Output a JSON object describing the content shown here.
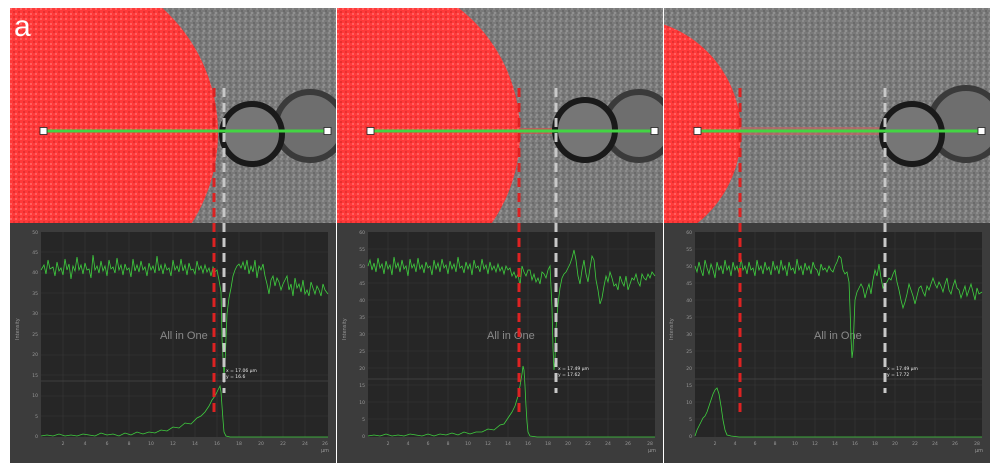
{
  "figure": {
    "panel_label": "a"
  },
  "colors": {
    "droplet_red": "#ff3a3a",
    "profile_line": "#43d443",
    "signal_green": "#3fcf3f",
    "plot_bg": "#262626",
    "frame_bg": "#3c3c3c",
    "grid": "#3a3a3a",
    "marker_red": "#dd2222",
    "marker_grey": "#c8c8c8"
  },
  "panels": [
    {
      "watermark": "All in One",
      "y_axis_label": "Intensity",
      "x_unit": "µm",
      "cursor_x": "x = 17.06 µm",
      "cursor_y": "y = 16.6",
      "y_ticks": [
        "0",
        "5",
        "10",
        "15",
        "20",
        "25",
        "30",
        "35",
        "40",
        "45",
        "50"
      ],
      "x_ticks": [
        "2",
        "4",
        "6",
        "8",
        "10",
        "12",
        "14",
        "16",
        "18",
        "20",
        "22",
        "24",
        "26"
      ],
      "image_icons": [
        "droplet",
        "cell-pair"
      ]
    },
    {
      "watermark": "All in One",
      "y_axis_label": "Intensity",
      "x_unit": "µm",
      "cursor_x": "x = 17.49 µm",
      "cursor_y": "y = 17.62",
      "y_ticks": [
        "0",
        "5",
        "10",
        "15",
        "20",
        "25",
        "30",
        "35",
        "40",
        "45",
        "50",
        "55",
        "60"
      ],
      "x_ticks": [
        "2",
        "4",
        "6",
        "8",
        "10",
        "12",
        "14",
        "16",
        "18",
        "20",
        "22",
        "24",
        "26",
        "28"
      ],
      "image_icons": [
        "droplet",
        "cell-pair"
      ]
    },
    {
      "watermark": "All in One",
      "y_axis_label": "Intensity",
      "x_unit": "µm",
      "cursor_x": "x = 17.49 µm",
      "cursor_y": "y = 17.72",
      "y_ticks": [
        "0",
        "5",
        "10",
        "15",
        "20",
        "25",
        "30",
        "35",
        "40",
        "45",
        "50",
        "55",
        "60"
      ],
      "x_ticks": [
        "2",
        "4",
        "6",
        "8",
        "10",
        "12",
        "14",
        "16",
        "18",
        "20",
        "22",
        "24",
        "26",
        "28"
      ],
      "image_icons": [
        "droplet",
        "cell-pair"
      ]
    }
  ]
}
